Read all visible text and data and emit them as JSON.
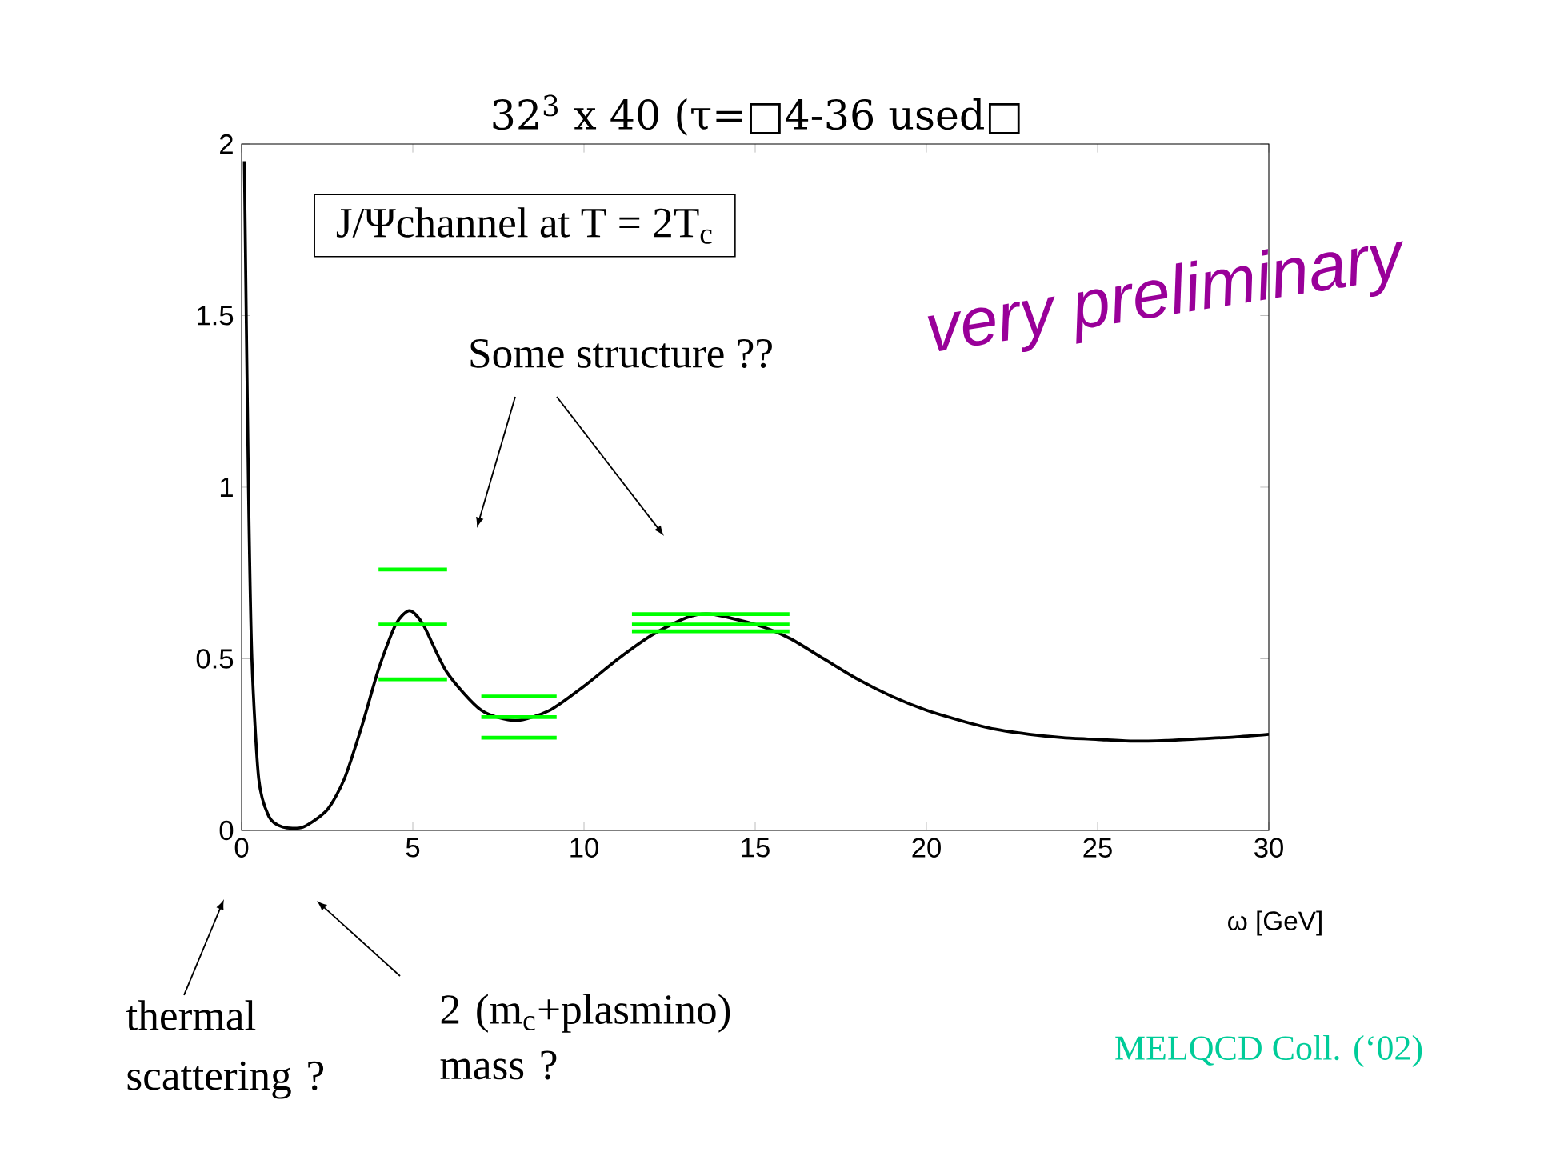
{
  "chart_data": {
    "type": "line",
    "title": "32$^{3}$ x 40 (τ=□4-36 used□",
    "xlabel": "ω [GeV]",
    "xlim": [
      0,
      30
    ],
    "ylim": [
      0,
      2
    ],
    "xticks": [
      0,
      5,
      10,
      15,
      20,
      25,
      30
    ],
    "yticks": [
      0,
      0.5,
      1,
      1.5,
      2
    ],
    "series": [
      {
        "color": "#000000",
        "x": [
          0.08,
          0.2,
          0.3,
          0.5,
          0.8,
          1.2,
          1.8,
          2.5,
          3.0,
          3.5,
          4.0,
          4.5,
          4.9,
          5.3,
          6.0,
          7.0,
          8.0,
          9.0,
          10,
          11,
          12,
          13,
          13.7,
          15,
          16,
          17,
          18,
          19,
          20,
          21,
          22,
          23,
          24,
          25,
          26,
          27,
          28,
          29,
          30
        ],
        "values": [
          1.95,
          1.0,
          0.5,
          0.15,
          0.04,
          0.01,
          0.01,
          0.06,
          0.15,
          0.3,
          0.47,
          0.6,
          0.64,
          0.6,
          0.46,
          0.35,
          0.32,
          0.35,
          0.42,
          0.5,
          0.57,
          0.62,
          0.63,
          0.6,
          0.56,
          0.5,
          0.44,
          0.39,
          0.35,
          0.32,
          0.295,
          0.28,
          0.27,
          0.265,
          0.26,
          0.262,
          0.267,
          0.272,
          0.28
        ]
      },
      {
        "color": "#00ff00",
        "x": [
          4.0,
          6.0
        ],
        "values": [
          0.76,
          0.76
        ]
      },
      {
        "color": "#00ff00",
        "x": [
          4.0,
          6.0
        ],
        "values": [
          0.6,
          0.6
        ]
      },
      {
        "color": "#00ff00",
        "x": [
          4.0,
          6.0
        ],
        "values": [
          0.44,
          0.44
        ]
      },
      {
        "color": "#00ff00",
        "x": [
          7.0,
          9.2
        ],
        "values": [
          0.39,
          0.39
        ]
      },
      {
        "color": "#00ff00",
        "x": [
          7.0,
          9.2
        ],
        "values": [
          0.33,
          0.33
        ]
      },
      {
        "color": "#00ff00",
        "x": [
          7.0,
          9.2
        ],
        "values": [
          0.27,
          0.27
        ]
      },
      {
        "color": "#00ff00",
        "x": [
          11.4,
          16.0
        ],
        "values": [
          0.63,
          0.63
        ]
      },
      {
        "color": "#00ff00",
        "x": [
          11.4,
          16.0
        ],
        "values": [
          0.6,
          0.6
        ]
      },
      {
        "color": "#00ff00",
        "x": [
          11.4,
          16.0
        ],
        "values": [
          0.58,
          0.58
        ]
      }
    ],
    "annotations": [
      "J/Ψchannel at T = 2T$_{c}$",
      "very preliminary",
      "Some structure ??",
      "thermal scattering ?",
      "2  (m$_{c}$+plasmino) mass ?",
      "MELQCD Coll. (‘02)"
    ]
  }
}
